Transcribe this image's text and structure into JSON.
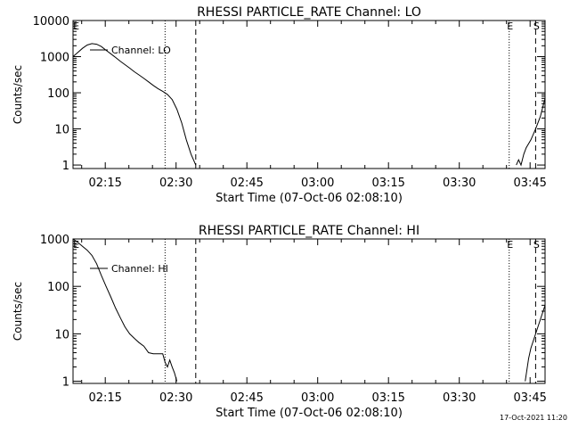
{
  "footer_stamp": "17-Oct-2021 11:20",
  "chart_data": [
    {
      "type": "line",
      "title": "RHESSI PARTICLE_RATE Channel: LO",
      "xlabel": "Start Time (07-Oct-06 02:08:10)",
      "ylabel": "Counts/sec",
      "y_scale": "log",
      "ylim": [
        0.8,
        10000
      ],
      "xlim_minutes": [
        0,
        100
      ],
      "x_ticks": [
        {
          "t": 6.83,
          "label": "02:15"
        },
        {
          "t": 21.83,
          "label": "02:30"
        },
        {
          "t": 36.83,
          "label": "02:45"
        },
        {
          "t": 51.83,
          "label": "03:00"
        },
        {
          "t": 66.83,
          "label": "03:15"
        },
        {
          "t": 81.83,
          "label": "03:30"
        },
        {
          "t": 96.83,
          "label": "03:45"
        }
      ],
      "y_ticks": [
        {
          "v": 1,
          "label": "1"
        },
        {
          "v": 10,
          "label": "10"
        },
        {
          "v": 100,
          "label": "100"
        },
        {
          "v": 1000,
          "label": "1000"
        },
        {
          "v": 10000,
          "label": "10000"
        }
      ],
      "legend": {
        "label": "Channel: LO",
        "placement": "top-left"
      },
      "markers": [
        {
          "t": 0.5,
          "label": "E",
          "style": "none"
        },
        {
          "t": 19.5,
          "label": "",
          "style": "dotted"
        },
        {
          "t": 26.0,
          "label": "",
          "style": "dashed"
        },
        {
          "t": 92.4,
          "label": "E",
          "style": "dotted"
        },
        {
          "t": 98.0,
          "label": "S",
          "style": "dashed"
        },
        {
          "t": 100.0,
          "label": "",
          "style": "dashed"
        }
      ],
      "series": [
        {
          "segments": [
            [
              [
                0,
                1000
              ],
              [
                1,
                1300
              ],
              [
                2,
                1700
              ],
              [
                3,
                2100
              ],
              [
                4,
                2300
              ],
              [
                5,
                2200
              ],
              [
                6,
                1900
              ],
              [
                7,
                1500
              ],
              [
                8,
                1200
              ],
              [
                9,
                950
              ],
              [
                10,
                750
              ],
              [
                11,
                600
              ],
              [
                12,
                480
              ],
              [
                13,
                380
              ],
              [
                14,
                310
              ],
              [
                15,
                250
              ],
              [
                16,
                200
              ],
              [
                17,
                160
              ],
              [
                18,
                130
              ],
              [
                19,
                110
              ],
              [
                20,
                90
              ],
              [
                21,
                65
              ],
              [
                22,
                35
              ],
              [
                23,
                15
              ],
              [
                24,
                5
              ],
              [
                25,
                2
              ],
              [
                26,
                1
              ]
            ],
            [
              [
                93.9,
                1
              ],
              [
                94.4,
                1.4
              ],
              [
                94.9,
                1
              ],
              [
                95.5,
                2
              ],
              [
                96,
                3
              ],
              [
                97,
                5
              ],
              [
                98,
                10
              ],
              [
                99,
                22
              ],
              [
                100,
                70
              ]
            ]
          ]
        }
      ]
    },
    {
      "type": "line",
      "title": "RHESSI PARTICLE_RATE Channel: HI",
      "xlabel": "Start Time (07-Oct-06 02:08:10)",
      "ylabel": "Counts/sec",
      "y_scale": "log",
      "ylim": [
        0.9,
        1000
      ],
      "xlim_minutes": [
        0,
        100
      ],
      "x_ticks": [
        {
          "t": 6.83,
          "label": "02:15"
        },
        {
          "t": 21.83,
          "label": "02:30"
        },
        {
          "t": 36.83,
          "label": "02:45"
        },
        {
          "t": 51.83,
          "label": "03:00"
        },
        {
          "t": 66.83,
          "label": "03:15"
        },
        {
          "t": 81.83,
          "label": "03:30"
        },
        {
          "t": 96.83,
          "label": "03:45"
        }
      ],
      "y_ticks": [
        {
          "v": 1,
          "label": "1"
        },
        {
          "v": 10,
          "label": "10"
        },
        {
          "v": 100,
          "label": "100"
        },
        {
          "v": 1000,
          "label": "1000"
        }
      ],
      "legend": {
        "label": "Channel: HI",
        "placement": "top-left"
      },
      "markers": [
        {
          "t": 0.5,
          "label": "E",
          "style": "none"
        },
        {
          "t": 19.5,
          "label": "",
          "style": "dotted"
        },
        {
          "t": 26.0,
          "label": "",
          "style": "dashed"
        },
        {
          "t": 92.4,
          "label": "E",
          "style": "dotted"
        },
        {
          "t": 98.0,
          "label": "S",
          "style": "dashed"
        },
        {
          "t": 100.0,
          "label": "",
          "style": "dashed"
        }
      ],
      "series": [
        {
          "segments": [
            [
              [
                0,
                1000
              ],
              [
                1,
                850
              ],
              [
                2,
                700
              ],
              [
                3,
                580
              ],
              [
                4,
                450
              ],
              [
                5,
                300
              ],
              [
                6,
                170
              ],
              [
                7,
                100
              ],
              [
                8,
                60
              ],
              [
                9,
                35
              ],
              [
                10,
                22
              ],
              [
                11,
                14
              ],
              [
                12,
                10
              ],
              [
                13,
                8
              ],
              [
                14,
                6.5
              ],
              [
                15,
                5.5
              ],
              [
                16,
                4
              ],
              [
                17,
                3.8
              ],
              [
                18,
                3.8
              ],
              [
                19,
                3.8
              ],
              [
                19.5,
                2.5
              ],
              [
                20,
                2
              ],
              [
                20.5,
                2.8
              ],
              [
                21,
                2
              ],
              [
                21.5,
                1.5
              ],
              [
                22,
                1
              ]
            ],
            [
              [
                95.8,
                1
              ],
              [
                96.5,
                3
              ],
              [
                97,
                5
              ],
              [
                98,
                10
              ],
              [
                99,
                20
              ],
              [
                100,
                40
              ]
            ]
          ]
        }
      ]
    }
  ]
}
